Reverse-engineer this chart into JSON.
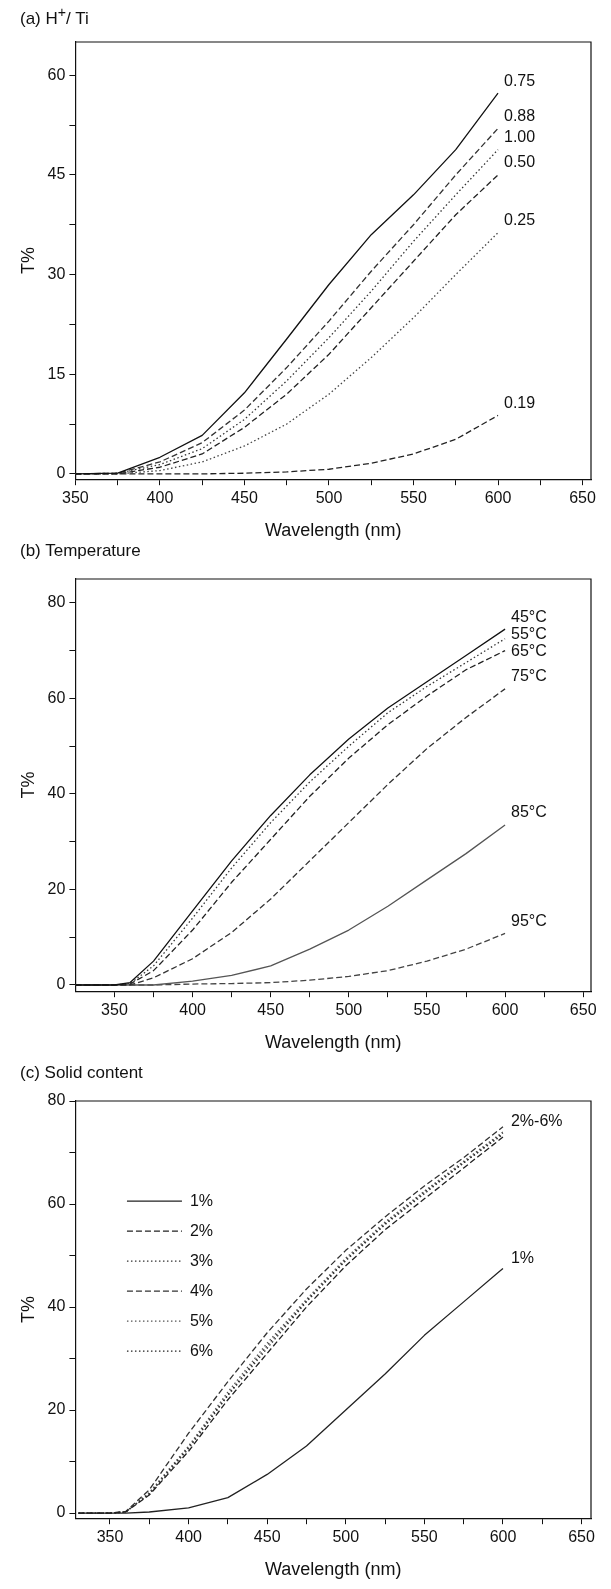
{
  "chart_data": [
    {
      "type": "line",
      "title": "(a) H$^{+}$/ Ti",
      "xlabel": "Wavelength (nm)",
      "ylabel": "T%",
      "x": [
        350,
        375,
        400,
        425,
        450,
        475,
        500,
        525,
        550,
        575,
        600
      ],
      "xlim": [
        350,
        655
      ],
      "xticks": [
        350,
        {
          "value": 375,
          "label": null
        },
        400,
        {
          "value": 425,
          "label": null
        },
        450,
        {
          "value": 475,
          "label": null
        },
        500,
        {
          "value": 525,
          "label": null
        },
        550,
        {
          "value": 575,
          "label": null
        },
        600,
        {
          "value": 625,
          "label": null
        },
        650
      ],
      "ylim": [
        -0.8,
        65
      ],
      "yticks": [
        0,
        {
          "value": 7.5,
          "label": null
        },
        15,
        {
          "value": 22.5,
          "label": null
        },
        30,
        {
          "value": 37.5,
          "label": null
        },
        45,
        {
          "value": 52.5,
          "label": null
        },
        60
      ],
      "grid": false,
      "legend": false,
      "marker": "none",
      "series": [
        {
          "name": "0.75",
          "color": "#111111",
          "line_style": "solid",
          "values": [
            0,
            0.1,
            2.5,
            5.8,
            12.2,
            20.3,
            28.5,
            36,
            42,
            48.8,
            57.3
          ]
        },
        {
          "name": "0.88",
          "color": "#333333",
          "line_style": "dashed",
          "values": [
            0,
            0.1,
            1.8,
            4.7,
            9.6,
            16,
            23,
            30.5,
            37.5,
            45,
            52
          ]
        },
        {
          "name": "1.00",
          "color": "#333333",
          "line_style": "dotted",
          "values": [
            0,
            0.1,
            1.4,
            3.8,
            8.2,
            14,
            20.5,
            27.5,
            35,
            42,
            48.8
          ]
        },
        {
          "name": "0.50",
          "color": "#222222",
          "line_style": "dashed",
          "values": [
            0,
            0,
            1,
            3,
            7,
            12,
            18,
            25,
            32,
            39,
            45
          ]
        },
        {
          "name": "0.25",
          "color": "#444444",
          "line_style": "dotted",
          "values": [
            0,
            0,
            0.5,
            1.8,
            4.2,
            7.5,
            12,
            17.5,
            23.5,
            30,
            36.3
          ]
        },
        {
          "name": "0.19",
          "color": "#222222",
          "line_style": "dashed",
          "values": [
            0,
            0,
            0,
            0,
            0.1,
            0.3,
            0.7,
            1.6,
            3,
            5.2,
            8.8
          ]
        }
      ]
    },
    {
      "type": "line",
      "title": "(b) Temperature",
      "xlabel": "Wavelength (nm)",
      "ylabel": "T%",
      "x": [
        325,
        350,
        360,
        375,
        400,
        425,
        450,
        475,
        500,
        525,
        550,
        575,
        600
      ],
      "xlim": [
        325,
        655
      ],
      "xticks": [
        350,
        {
          "value": 375,
          "label": null
        },
        400,
        {
          "value": 425,
          "label": null
        },
        450,
        {
          "value": 475,
          "label": null
        },
        500,
        {
          "value": 525,
          "label": null
        },
        550,
        {
          "value": 575,
          "label": null
        },
        600,
        {
          "value": 625,
          "label": null
        },
        650
      ],
      "ylim": [
        -1.3,
        85
      ],
      "yticks": [
        0,
        {
          "value": 10,
          "label": null
        },
        20,
        {
          "value": 30,
          "label": null
        },
        40,
        {
          "value": 50,
          "label": null
        },
        60,
        {
          "value": 70,
          "label": null
        },
        80
      ],
      "grid": false,
      "legend": false,
      "marker": "none",
      "series": [
        {
          "name": "45°C",
          "color": "#111111",
          "line_style": "solid",
          "values": [
            0,
            0,
            0.5,
            5,
            15.5,
            26,
            35.5,
            44,
            51.5,
            58,
            63.5,
            69,
            74.5
          ]
        },
        {
          "name": "55°C",
          "color": "#333333",
          "line_style": "dotted",
          "values": [
            0,
            0,
            0.3,
            4,
            14,
            24.5,
            34,
            42.5,
            50,
            57,
            62.5,
            67.5,
            72.5
          ]
        },
        {
          "name": "65°C",
          "color": "#222222",
          "line_style": "dashed",
          "values": [
            0,
            0,
            0.2,
            3,
            11.5,
            21.5,
            30.5,
            39.5,
            47.5,
            54.5,
            60.5,
            66,
            70
          ]
        },
        {
          "name": "75°C",
          "color": "#333333",
          "line_style": "dashed",
          "values": [
            0,
            0,
            0,
            1.5,
            5.5,
            11,
            18,
            26,
            34,
            42,
            49.5,
            56,
            62
          ]
        },
        {
          "name": "85°C",
          "color": "#555555",
          "line_style": "solid",
          "values": [
            0,
            0,
            0,
            0,
            0.8,
            2,
            4,
            7.5,
            11.5,
            16.5,
            22,
            27.5,
            33.5
          ]
        },
        {
          "name": "95°C",
          "color": "#444444",
          "line_style": "dashed",
          "values": [
            0,
            0,
            0,
            0,
            0.2,
            0.3,
            0.5,
            1,
            1.8,
            3,
            5,
            7.5,
            10.8
          ]
        }
      ]
    },
    {
      "type": "line",
      "title": "(c) Solid content",
      "xlabel": "Wavelength (nm)",
      "ylabel": "T%",
      "x": [
        330,
        350,
        360,
        375,
        400,
        425,
        450,
        475,
        500,
        525,
        550,
        575,
        600
      ],
      "xlim": [
        328,
        656
      ],
      "xticks": [
        350,
        {
          "value": 375,
          "label": null
        },
        400,
        {
          "value": 425,
          "label": null
        },
        450,
        {
          "value": 475,
          "label": null
        },
        500,
        {
          "value": 525,
          "label": null
        },
        550,
        {
          "value": 575,
          "label": null
        },
        600,
        {
          "value": 625,
          "label": null
        },
        650
      ],
      "ylim": [
        -1,
        80
      ],
      "yticks": [
        0,
        {
          "value": 10,
          "label": null
        },
        20,
        {
          "value": 30,
          "label": null
        },
        40,
        {
          "value": 50,
          "label": null
        },
        60,
        {
          "value": 70,
          "label": null
        },
        80
      ],
      "grid": false,
      "legend": "left",
      "marker": "none",
      "annotations": [
        {
          "text": "2%-6%",
          "x": 600,
          "y": 74
        },
        {
          "text": "1%",
          "x": 600,
          "y": 47.5
        }
      ],
      "series": [
        {
          "name": "1%",
          "color": "#222222",
          "line_style": "solid",
          "values": [
            0,
            0,
            0,
            0.2,
            1,
            3,
            7.5,
            13,
            20,
            27,
            34.5,
            41,
            47.5
          ]
        },
        {
          "name": "2%",
          "color": "#222222",
          "line_style": "dashed",
          "values": [
            0,
            0,
            0.2,
            3.5,
            12,
            22,
            31,
            40,
            48,
            55,
            61,
            67,
            73
          ]
        },
        {
          "name": "3%",
          "color": "#333333",
          "line_style": "dotted",
          "values": [
            0,
            0,
            0.2,
            3.7,
            12.5,
            22.8,
            32,
            41,
            49,
            56,
            62,
            68,
            73.5
          ]
        },
        {
          "name": "4%",
          "color": "#333333",
          "line_style": "dashed",
          "values": [
            0,
            0,
            0.3,
            4.5,
            15.5,
            25.5,
            35,
            43.5,
            51,
            57.5,
            63.5,
            69,
            75
          ]
        },
        {
          "name": "5%",
          "color": "#555555",
          "line_style": "dotted",
          "values": [
            0,
            0,
            0.2,
            4,
            13,
            23.5,
            33,
            41.5,
            49.5,
            56.5,
            62.5,
            68.3,
            74
          ]
        },
        {
          "name": "6%",
          "color": "#222222",
          "line_style": "dotted",
          "values": [
            0,
            0,
            0.2,
            3.8,
            12.8,
            23,
            32.5,
            41.2,
            49.2,
            56.2,
            62.3,
            68,
            73.8
          ]
        }
      ]
    }
  ]
}
